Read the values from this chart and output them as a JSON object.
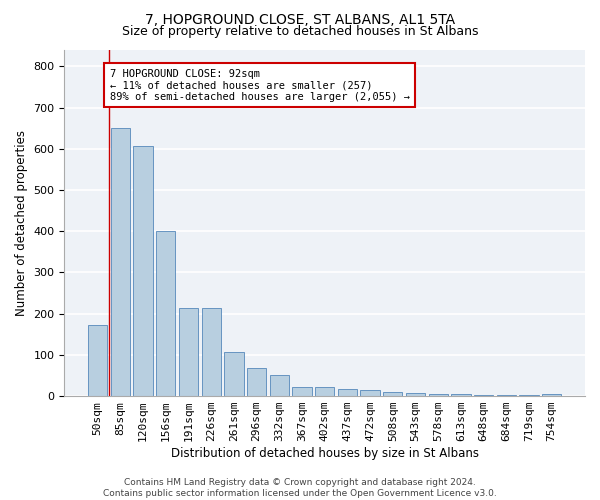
{
  "title_line1": "7, HOPGROUND CLOSE, ST ALBANS, AL1 5TA",
  "title_line2": "Size of property relative to detached houses in St Albans",
  "xlabel": "Distribution of detached houses by size in St Albans",
  "ylabel": "Number of detached properties",
  "categories": [
    "50sqm",
    "85sqm",
    "120sqm",
    "156sqm",
    "191sqm",
    "226sqm",
    "261sqm",
    "296sqm",
    "332sqm",
    "367sqm",
    "402sqm",
    "437sqm",
    "472sqm",
    "508sqm",
    "543sqm",
    "578sqm",
    "613sqm",
    "648sqm",
    "684sqm",
    "719sqm",
    "754sqm"
  ],
  "bar_heights": [
    172,
    650,
    607,
    400,
    215,
    215,
    108,
    67,
    50,
    22,
    22,
    17,
    15,
    10,
    8,
    4,
    4,
    3,
    2,
    2,
    5
  ],
  "bar_color": "#b8cfe0",
  "bar_edge_color": "#5588bb",
  "background_color": "#eef2f7",
  "grid_color": "#ffffff",
  "annotation_text": "7 HOPGROUND CLOSE: 92sqm\n← 11% of detached houses are smaller (257)\n89% of semi-detached houses are larger (2,055) →",
  "annotation_box_color": "#ffffff",
  "annotation_box_edge_color": "#cc0000",
  "red_line_x": 0.5,
  "footer_line1": "Contains HM Land Registry data © Crown copyright and database right 2024.",
  "footer_line2": "Contains public sector information licensed under the Open Government Licence v3.0.",
  "ylim": [
    0,
    840
  ],
  "yticks": [
    0,
    100,
    200,
    300,
    400,
    500,
    600,
    700,
    800
  ],
  "title1_fontsize": 10,
  "title2_fontsize": 9,
  "xlabel_fontsize": 8.5,
  "ylabel_fontsize": 8.5,
  "tick_fontsize": 8,
  "footer_fontsize": 6.5,
  "ann_fontsize": 7.5
}
